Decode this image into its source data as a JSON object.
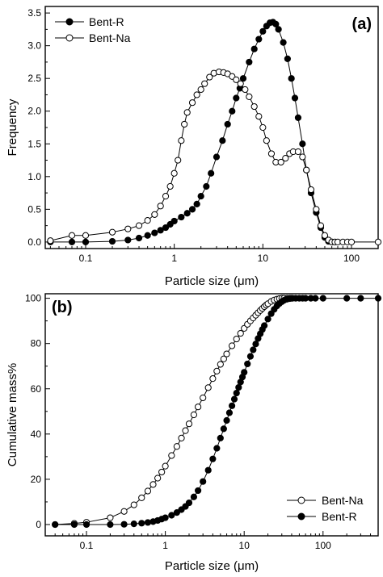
{
  "chart_data": [
    {
      "panel_label": "(a)",
      "type": "line",
      "xscale": "log",
      "xlim": [
        0.035,
        200
      ],
      "ylim": [
        -0.1,
        3.6
      ],
      "xlabel": "Particle size (μm)",
      "ylabel": "Frequency",
      "xticks": [
        0.1,
        1,
        10,
        100
      ],
      "xtick_labels": [
        "0.1",
        "1",
        "10",
        "100"
      ],
      "yticks": [
        0.0,
        0.5,
        1.0,
        1.5,
        2.0,
        2.5,
        3.0,
        3.5
      ],
      "ytick_labels": [
        "0.0",
        "0.5",
        "1.0",
        "1.5",
        "2.0",
        "2.5",
        "3.0",
        "3.5"
      ],
      "legend_position": "top-left",
      "legend": [
        "Bent-R",
        "Bent-Na"
      ],
      "series": [
        {
          "name": "Bent-R",
          "marker": "filled-circle",
          "x": [
            0.04,
            0.07,
            0.1,
            0.2,
            0.3,
            0.4,
            0.5,
            0.6,
            0.7,
            0.8,
            0.9,
            1.0,
            1.2,
            1.4,
            1.6,
            1.8,
            2.0,
            2.3,
            2.6,
            3.0,
            3.5,
            4.0,
            4.5,
            5.0,
            5.5,
            6.0,
            7.0,
            8.0,
            9.0,
            10,
            11,
            12,
            13,
            14,
            15,
            17,
            19,
            21,
            23,
            25,
            28,
            31,
            35,
            40,
            45,
            50,
            55,
            60
          ],
          "y": [
            0.0,
            0.0,
            0.0,
            0.01,
            0.03,
            0.06,
            0.1,
            0.14,
            0.18,
            0.22,
            0.27,
            0.32,
            0.38,
            0.44,
            0.5,
            0.58,
            0.7,
            0.85,
            1.05,
            1.3,
            1.55,
            1.8,
            2.0,
            2.2,
            2.35,
            2.5,
            2.75,
            2.95,
            3.1,
            3.22,
            3.3,
            3.35,
            3.36,
            3.33,
            3.25,
            3.05,
            2.8,
            2.5,
            2.2,
            1.9,
            1.5,
            1.1,
            0.75,
            0.45,
            0.22,
            0.07,
            0.01,
            0.0
          ]
        },
        {
          "name": "Bent-Na",
          "marker": "open-circle",
          "x": [
            0.04,
            0.07,
            0.1,
            0.2,
            0.3,
            0.4,
            0.5,
            0.6,
            0.7,
            0.8,
            0.9,
            1.0,
            1.1,
            1.2,
            1.3,
            1.4,
            1.6,
            1.8,
            2.0,
            2.2,
            2.5,
            2.8,
            3.2,
            3.6,
            4.0,
            4.5,
            5.0,
            5.6,
            6.3,
            7.0,
            8.0,
            9.0,
            10,
            11,
            12.5,
            14,
            16,
            18,
            20,
            22,
            25,
            28,
            31,
            35,
            40,
            45,
            50,
            55,
            60,
            65,
            70,
            80,
            90,
            100,
            200
          ],
          "y": [
            0.02,
            0.1,
            0.1,
            0.15,
            0.2,
            0.25,
            0.33,
            0.42,
            0.55,
            0.7,
            0.85,
            1.05,
            1.25,
            1.55,
            1.8,
            1.98,
            2.13,
            2.25,
            2.33,
            2.42,
            2.52,
            2.58,
            2.6,
            2.59,
            2.57,
            2.53,
            2.48,
            2.42,
            2.33,
            2.22,
            2.07,
            1.92,
            1.75,
            1.55,
            1.35,
            1.22,
            1.22,
            1.28,
            1.35,
            1.38,
            1.38,
            1.3,
            1.1,
            0.8,
            0.5,
            0.25,
            0.1,
            0.03,
            0.0,
            0.0,
            0.0,
            0.0,
            0.0,
            0.0,
            0.0
          ]
        }
      ]
    },
    {
      "panel_label": "(b)",
      "type": "line",
      "xscale": "log",
      "xlim": [
        0.03,
        500
      ],
      "ylim": [
        -5,
        102
      ],
      "xlabel": "Particle size (μm)",
      "ylabel": "Cumulative mass%",
      "xticks": [
        0.1,
        1,
        10,
        100
      ],
      "xtick_labels": [
        "0.1",
        "1",
        "10",
        "100"
      ],
      "yticks": [
        0,
        20,
        40,
        60,
        80,
        100
      ],
      "ytick_labels": [
        "0",
        "20",
        "40",
        "60",
        "80",
        "100"
      ],
      "legend_position": "bottom-right",
      "legend": [
        "Bent-Na",
        "Bent-R"
      ],
      "series": [
        {
          "name": "Bent-Na",
          "marker": "open-circle",
          "x": [
            0.04,
            0.07,
            0.1,
            0.2,
            0.3,
            0.4,
            0.5,
            0.6,
            0.7,
            0.8,
            0.9,
            1.0,
            1.2,
            1.4,
            1.6,
            1.8,
            2.0,
            2.3,
            2.6,
            3.0,
            3.5,
            4.0,
            4.5,
            5.0,
            5.5,
            6.0,
            7.0,
            8.0,
            9.0,
            10,
            11,
            12,
            13,
            14,
            15,
            16,
            17,
            18,
            19,
            20,
            22,
            24,
            26,
            28,
            30,
            32,
            35,
            38,
            40
          ],
          "y": [
            0.0,
            0.5,
            1.0,
            3.0,
            5.8,
            8.7,
            11.8,
            14.8,
            17.7,
            20.5,
            23.2,
            25.8,
            30.5,
            34.5,
            38.2,
            41.5,
            44.5,
            48.5,
            52.0,
            56.0,
            60.5,
            64.5,
            67.8,
            70.8,
            73.2,
            75.4,
            79.0,
            82.0,
            84.5,
            86.7,
            88.5,
            90.0,
            91.3,
            92.5,
            93.6,
            94.6,
            95.5,
            96.3,
            97.0,
            97.6,
            98.6,
            99.2,
            99.6,
            99.85,
            100,
            100,
            100,
            100,
            100
          ]
        },
        {
          "name": "Bent-R",
          "marker": "filled-circle",
          "x": [
            0.04,
            0.07,
            0.1,
            0.2,
            0.3,
            0.4,
            0.5,
            0.6,
            0.7,
            0.8,
            0.9,
            1.0,
            1.2,
            1.4,
            1.6,
            1.8,
            2.0,
            2.3,
            2.6,
            3.0,
            3.5,
            4.0,
            4.5,
            5.0,
            5.5,
            6.0,
            6.5,
            7.0,
            7.5,
            8.0,
            8.5,
            9.0,
            9.5,
            10,
            11,
            12,
            13,
            14,
            15,
            16,
            17,
            18,
            20,
            22,
            24,
            26,
            28,
            30,
            32,
            35,
            38,
            41,
            45,
            50,
            55,
            60,
            70,
            80,
            100,
            200,
            300,
            500
          ],
          "y": [
            0.0,
            0.0,
            0.0,
            0.0,
            0.1,
            0.3,
            0.6,
            0.9,
            1.3,
            1.8,
            2.4,
            3.0,
            4.1,
            5.3,
            6.6,
            8.0,
            9.6,
            12.2,
            15.0,
            19.0,
            24.0,
            29.0,
            33.7,
            38.2,
            42.3,
            46.0,
            49.4,
            52.5,
            55.4,
            58.1,
            60.6,
            63.0,
            65.2,
            67.3,
            71.0,
            74.3,
            77.2,
            79.8,
            82.2,
            84.3,
            86.2,
            87.9,
            90.8,
            93.2,
            95.1,
            96.6,
            97.7,
            98.5,
            99.1,
            99.6,
            99.85,
            100,
            100,
            100,
            100,
            100,
            100,
            100,
            100,
            100,
            100,
            100
          ]
        }
      ]
    }
  ]
}
